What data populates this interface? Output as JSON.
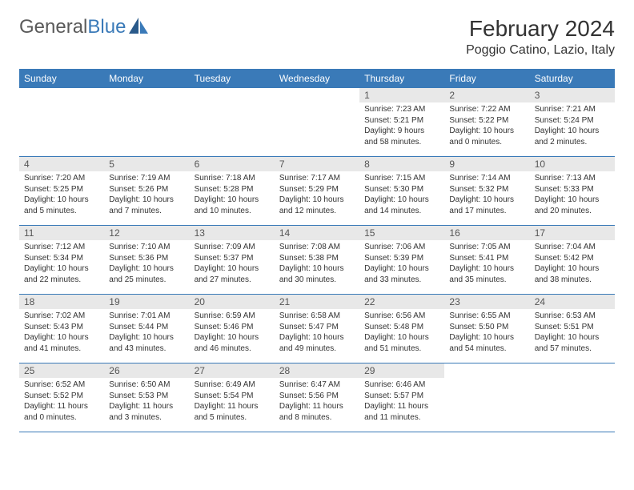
{
  "brand": {
    "text1": "General",
    "text2": "Blue"
  },
  "title": {
    "month": "February 2024",
    "location": "Poggio Catino, Lazio, Italy"
  },
  "colors": {
    "header_bg": "#3a7ab8",
    "header_text": "#ffffff",
    "daynum_bg": "#e8e8e8",
    "border": "#3a7ab8",
    "body_text": "#333333"
  },
  "weekdays": [
    "Sunday",
    "Monday",
    "Tuesday",
    "Wednesday",
    "Thursday",
    "Friday",
    "Saturday"
  ],
  "calendar": {
    "rows": 5,
    "cols": 7,
    "first_weekday_index": 4,
    "days": [
      {
        "n": 1,
        "sunrise": "7:23 AM",
        "sunset": "5:21 PM",
        "daylight": "9 hours and 58 minutes."
      },
      {
        "n": 2,
        "sunrise": "7:22 AM",
        "sunset": "5:22 PM",
        "daylight": "10 hours and 0 minutes."
      },
      {
        "n": 3,
        "sunrise": "7:21 AM",
        "sunset": "5:24 PM",
        "daylight": "10 hours and 2 minutes."
      },
      {
        "n": 4,
        "sunrise": "7:20 AM",
        "sunset": "5:25 PM",
        "daylight": "10 hours and 5 minutes."
      },
      {
        "n": 5,
        "sunrise": "7:19 AM",
        "sunset": "5:26 PM",
        "daylight": "10 hours and 7 minutes."
      },
      {
        "n": 6,
        "sunrise": "7:18 AM",
        "sunset": "5:28 PM",
        "daylight": "10 hours and 10 minutes."
      },
      {
        "n": 7,
        "sunrise": "7:17 AM",
        "sunset": "5:29 PM",
        "daylight": "10 hours and 12 minutes."
      },
      {
        "n": 8,
        "sunrise": "7:15 AM",
        "sunset": "5:30 PM",
        "daylight": "10 hours and 14 minutes."
      },
      {
        "n": 9,
        "sunrise": "7:14 AM",
        "sunset": "5:32 PM",
        "daylight": "10 hours and 17 minutes."
      },
      {
        "n": 10,
        "sunrise": "7:13 AM",
        "sunset": "5:33 PM",
        "daylight": "10 hours and 20 minutes."
      },
      {
        "n": 11,
        "sunrise": "7:12 AM",
        "sunset": "5:34 PM",
        "daylight": "10 hours and 22 minutes."
      },
      {
        "n": 12,
        "sunrise": "7:10 AM",
        "sunset": "5:36 PM",
        "daylight": "10 hours and 25 minutes."
      },
      {
        "n": 13,
        "sunrise": "7:09 AM",
        "sunset": "5:37 PM",
        "daylight": "10 hours and 27 minutes."
      },
      {
        "n": 14,
        "sunrise": "7:08 AM",
        "sunset": "5:38 PM",
        "daylight": "10 hours and 30 minutes."
      },
      {
        "n": 15,
        "sunrise": "7:06 AM",
        "sunset": "5:39 PM",
        "daylight": "10 hours and 33 minutes."
      },
      {
        "n": 16,
        "sunrise": "7:05 AM",
        "sunset": "5:41 PM",
        "daylight": "10 hours and 35 minutes."
      },
      {
        "n": 17,
        "sunrise": "7:04 AM",
        "sunset": "5:42 PM",
        "daylight": "10 hours and 38 minutes."
      },
      {
        "n": 18,
        "sunrise": "7:02 AM",
        "sunset": "5:43 PM",
        "daylight": "10 hours and 41 minutes."
      },
      {
        "n": 19,
        "sunrise": "7:01 AM",
        "sunset": "5:44 PM",
        "daylight": "10 hours and 43 minutes."
      },
      {
        "n": 20,
        "sunrise": "6:59 AM",
        "sunset": "5:46 PM",
        "daylight": "10 hours and 46 minutes."
      },
      {
        "n": 21,
        "sunrise": "6:58 AM",
        "sunset": "5:47 PM",
        "daylight": "10 hours and 49 minutes."
      },
      {
        "n": 22,
        "sunrise": "6:56 AM",
        "sunset": "5:48 PM",
        "daylight": "10 hours and 51 minutes."
      },
      {
        "n": 23,
        "sunrise": "6:55 AM",
        "sunset": "5:50 PM",
        "daylight": "10 hours and 54 minutes."
      },
      {
        "n": 24,
        "sunrise": "6:53 AM",
        "sunset": "5:51 PM",
        "daylight": "10 hours and 57 minutes."
      },
      {
        "n": 25,
        "sunrise": "6:52 AM",
        "sunset": "5:52 PM",
        "daylight": "11 hours and 0 minutes."
      },
      {
        "n": 26,
        "sunrise": "6:50 AM",
        "sunset": "5:53 PM",
        "daylight": "11 hours and 3 minutes."
      },
      {
        "n": 27,
        "sunrise": "6:49 AM",
        "sunset": "5:54 PM",
        "daylight": "11 hours and 5 minutes."
      },
      {
        "n": 28,
        "sunrise": "6:47 AM",
        "sunset": "5:56 PM",
        "daylight": "11 hours and 8 minutes."
      },
      {
        "n": 29,
        "sunrise": "6:46 AM",
        "sunset": "5:57 PM",
        "daylight": "11 hours and 11 minutes."
      }
    ]
  },
  "labels": {
    "sunrise": "Sunrise: ",
    "sunset": "Sunset: ",
    "daylight": "Daylight: "
  }
}
